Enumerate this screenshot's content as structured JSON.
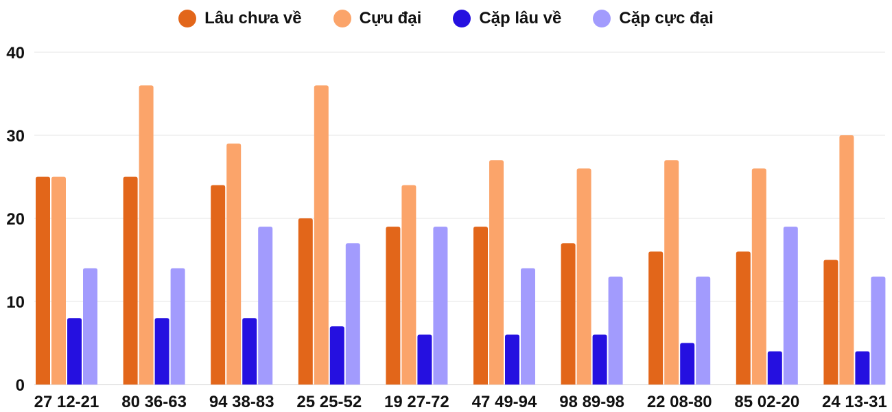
{
  "chart_data": {
    "type": "bar",
    "title": "",
    "xlabel": "",
    "ylabel": "",
    "ylim": [
      0,
      40
    ],
    "yticks": [
      0,
      10,
      20,
      30,
      40
    ],
    "grid": true,
    "legend_position": "top-center",
    "categories": [
      "27 12-21",
      "80 36-63",
      "94 38-83",
      "25 25-52",
      "19 27-72",
      "47 49-94",
      "98 89-98",
      "22 08-80",
      "85 02-20",
      "24 13-31"
    ],
    "series": [
      {
        "name": "Lâu chưa về",
        "color": "#e2661a",
        "values": [
          25,
          25,
          24,
          20,
          19,
          19,
          17,
          16,
          16,
          15
        ]
      },
      {
        "name": "Cựu đại",
        "color": "#fba46a",
        "values": [
          25,
          36,
          29,
          36,
          24,
          27,
          26,
          27,
          26,
          30
        ]
      },
      {
        "name": "Cặp lâu về",
        "color": "#2510e0",
        "values": [
          8,
          8,
          8,
          7,
          6,
          6,
          6,
          5,
          4,
          4
        ]
      },
      {
        "name": "Cặp cực đại",
        "color": "#a29bfd",
        "values": [
          14,
          14,
          19,
          17,
          19,
          14,
          13,
          13,
          19,
          13
        ]
      }
    ]
  }
}
